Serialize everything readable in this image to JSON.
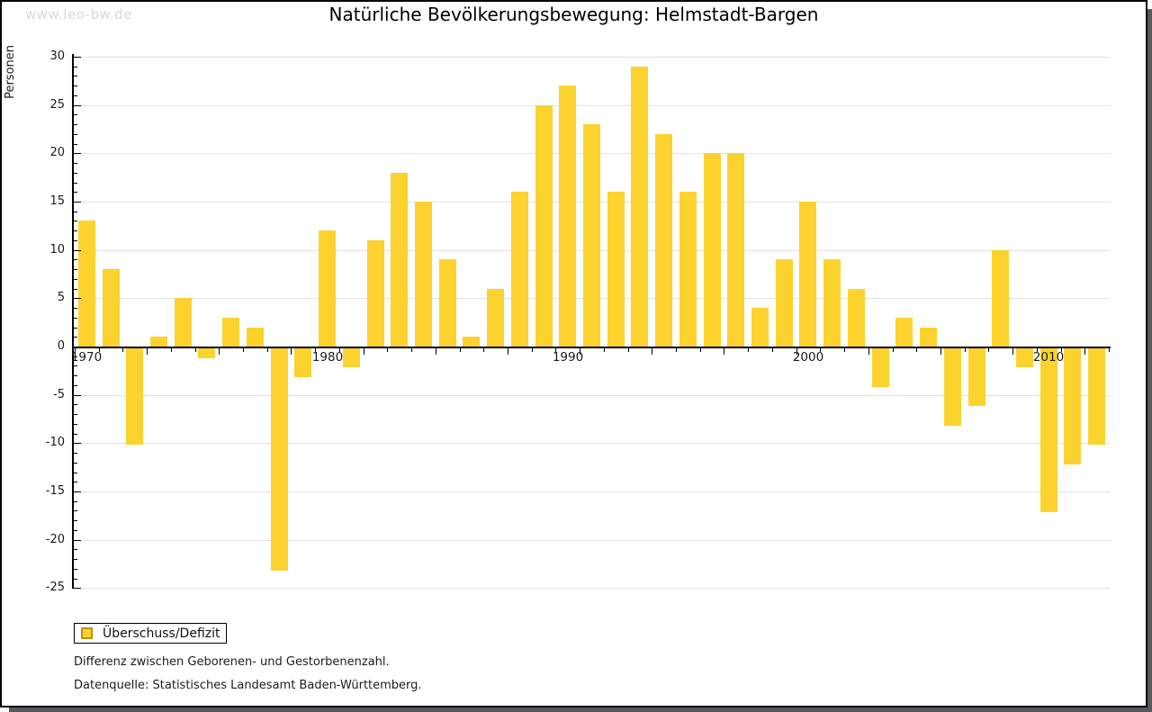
{
  "watermark": "www.leo-bw.de",
  "footnotes": {
    "line1": "Differenz zwischen Geborenen- und Gestorbenenzahl.",
    "line2": "Datenquelle: Statistisches Landesamt Baden-Württemberg."
  },
  "chart_data": {
    "type": "bar",
    "title": "Natürliche Bevölkerungsbewegung: Helmstadt-Bargen",
    "ylabel": "Personen",
    "categories": [
      1970,
      1971,
      1972,
      1973,
      1974,
      1975,
      1976,
      1977,
      1978,
      1979,
      1980,
      1981,
      1982,
      1983,
      1984,
      1985,
      1986,
      1987,
      1988,
      1989,
      1990,
      1991,
      1992,
      1993,
      1994,
      1995,
      1996,
      1997,
      1998,
      1999,
      2000,
      2001,
      2002,
      2003,
      2004,
      2005,
      2006,
      2007,
      2008,
      2009,
      2010,
      2011,
      2012
    ],
    "values": [
      13,
      8,
      -10,
      1,
      5,
      -1,
      3,
      2,
      -23,
      -3,
      12,
      -2,
      11,
      18,
      15,
      9,
      1,
      6,
      16,
      25,
      27,
      23,
      16,
      29,
      22,
      16,
      20,
      20,
      4,
      9,
      15,
      9,
      6,
      -4,
      3,
      2,
      -8,
      -6,
      10,
      -2,
      -17,
      -12,
      -10
    ],
    "ylim": [
      -25,
      30
    ],
    "ytick_step": 5,
    "ytick_minor_step": 1,
    "xtick_labels": [
      "1970",
      "1980",
      "1990",
      "2000",
      "2010"
    ],
    "legend_entries": [
      "Überschuss/Defizit"
    ],
    "bar_color": "#FCD32E",
    "bar_border_color": "#B6950E",
    "grid": "horizontal",
    "gridline_color": "#E2E2E2",
    "legend_position": "bottom-left"
  }
}
